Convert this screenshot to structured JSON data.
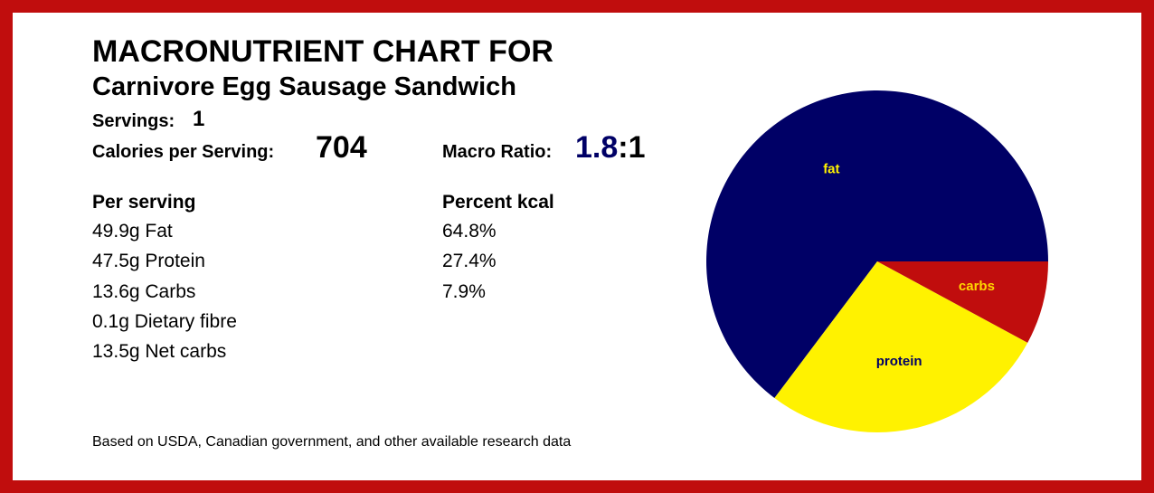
{
  "header": {
    "title": "MACRONUTRIENT CHART FOR",
    "recipe": "Carnivore Egg Sausage Sandwich"
  },
  "summary": {
    "servings_label": "Servings:",
    "servings": "1",
    "calories_label": "Calories per Serving:",
    "calories": "704",
    "ratio_label": "Macro Ratio:",
    "ratio_value": "1.8",
    "ratio_suffix": ":1"
  },
  "per_serving": {
    "heading": "Per serving",
    "rows": [
      "49.9g Fat",
      "47.5g Protein",
      "13.6g Carbs",
      "0.1g Dietary fibre",
      "13.5g Net carbs"
    ]
  },
  "percent_heading": "Percent kcal",
  "footer": "Based on USDA, Canadian government, and other available research data",
  "chart_data": {
    "type": "pie",
    "categories": [
      "fat",
      "protein",
      "carbs"
    ],
    "values": [
      64.8,
      27.4,
      7.9
    ],
    "value_labels": [
      "64.8%",
      "27.4%",
      "7.9%"
    ],
    "colors": [
      "#000066",
      "#fff200",
      "#c00d0d"
    ],
    "label_colors": [
      "#fff200",
      "#000066",
      "#ffd700"
    ]
  }
}
